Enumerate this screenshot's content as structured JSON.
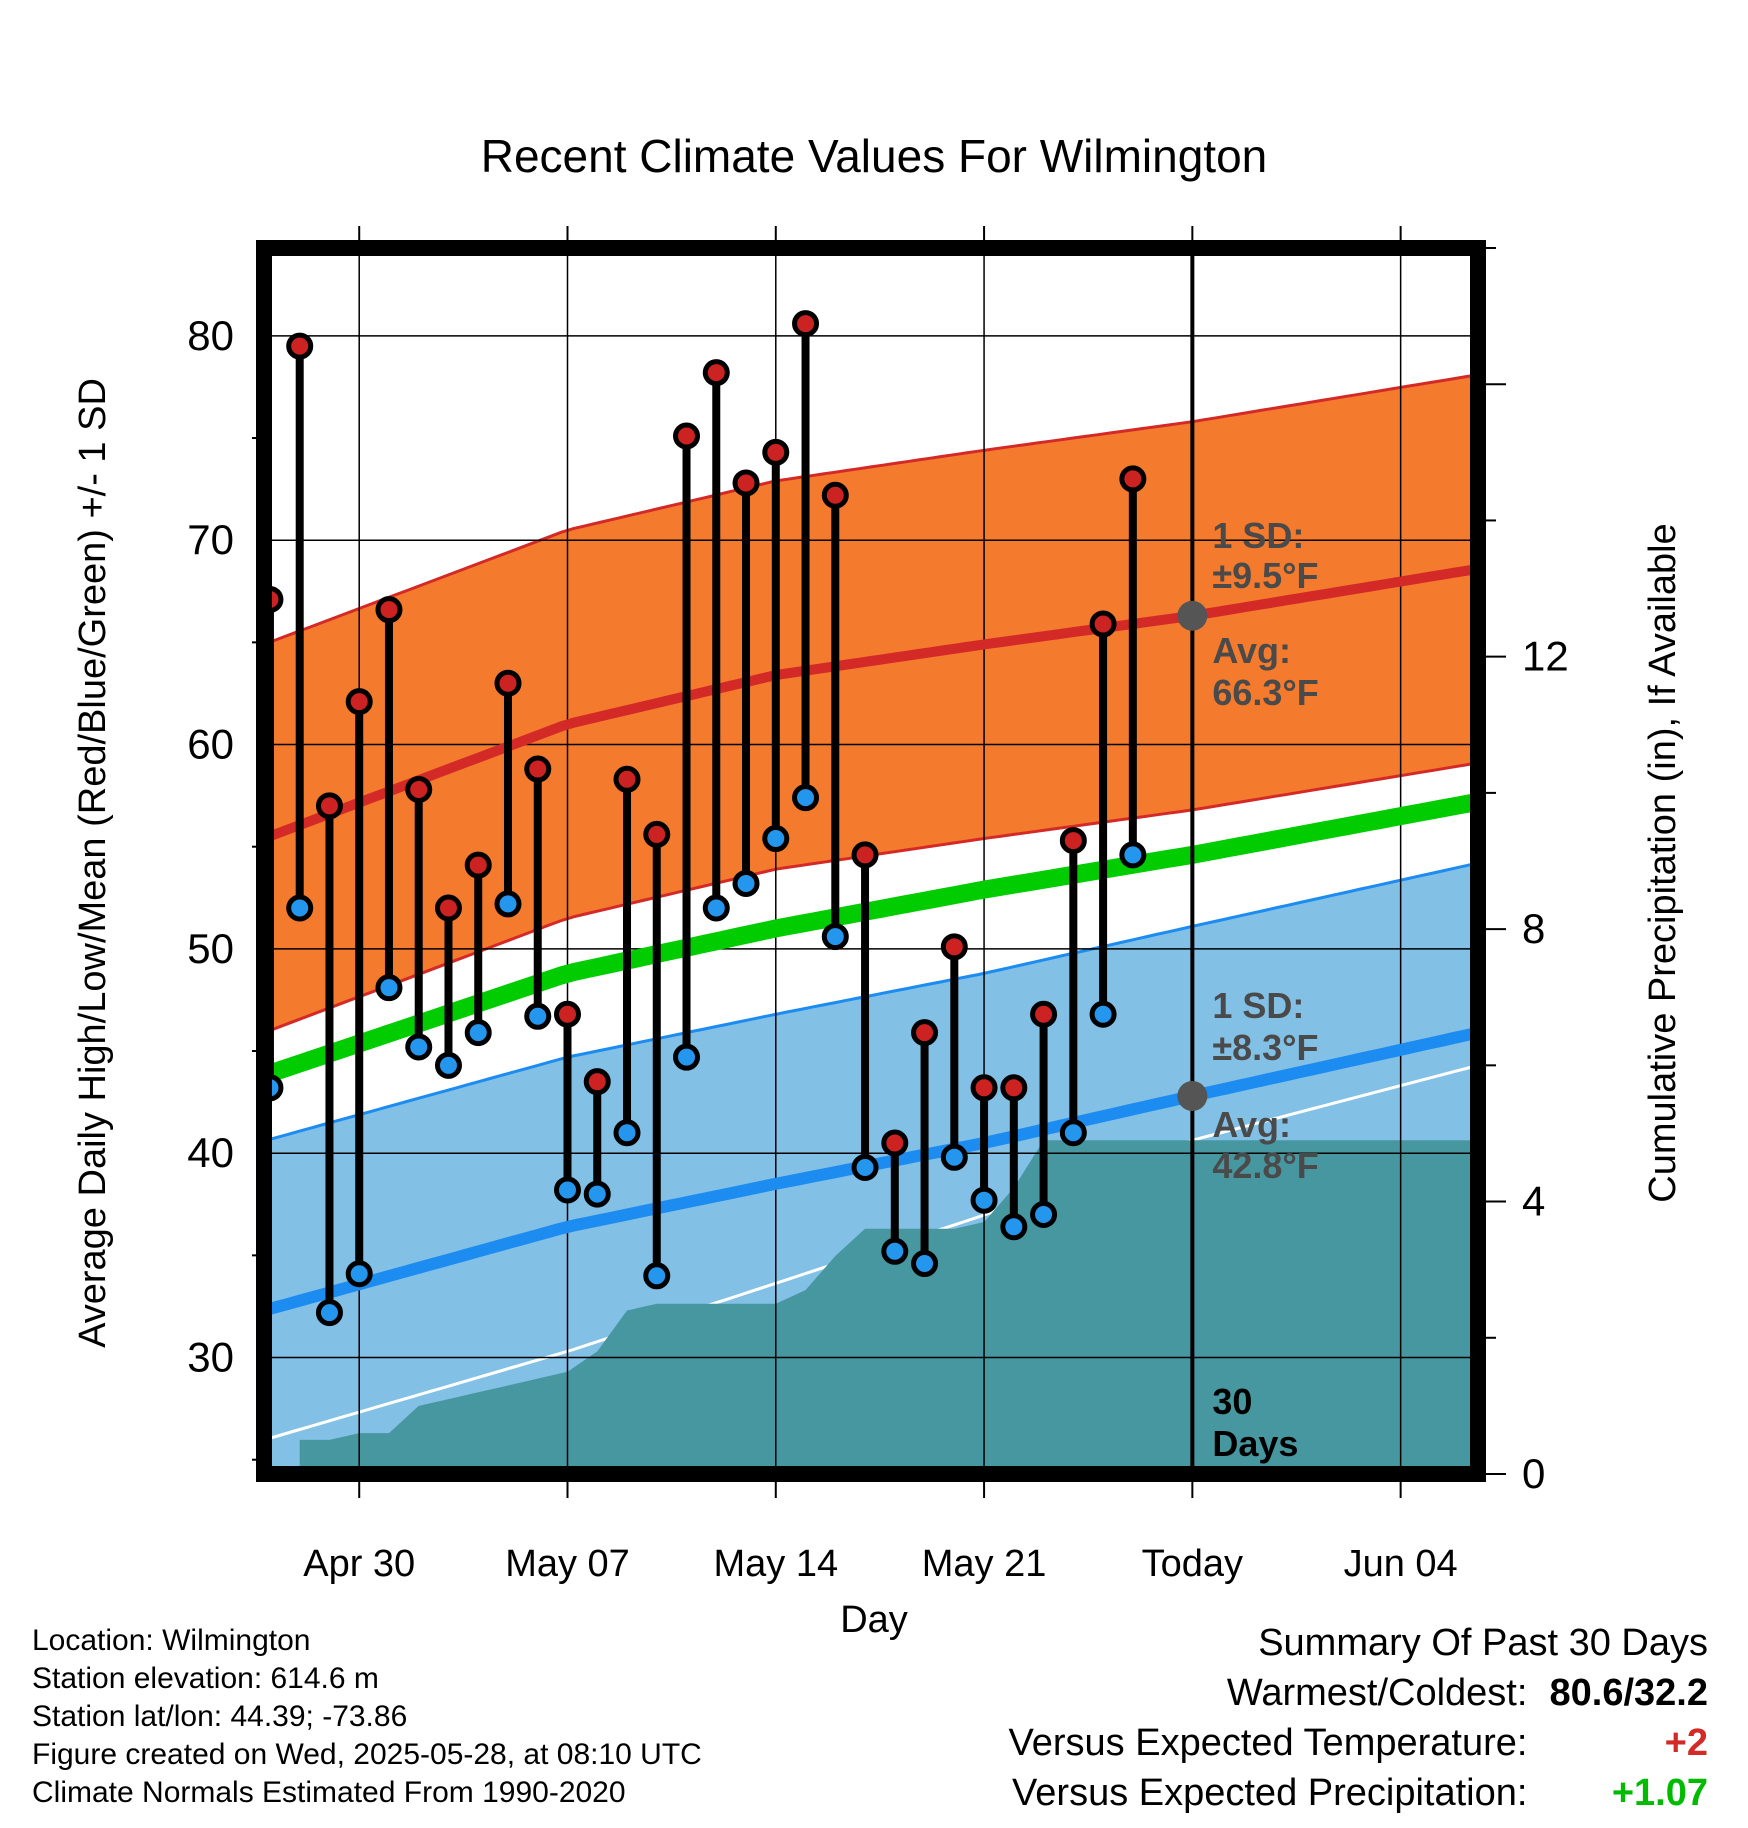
{
  "chart_data": {
    "type": "line",
    "title": "Recent Climate Values For Wilmington",
    "xlabel": "Day",
    "ylabel": "Average Daily High/Low/Mean (Red/Blue/Green) +/- 1 SD",
    "y2label": "Cumulative Precipitation (in), If Available",
    "ylim": [
      24.3,
      84.3
    ],
    "y2lim": [
      0,
      18.0
    ],
    "yticks": [
      "30",
      "40",
      "50",
      "60",
      "70",
      "80"
    ],
    "y2ticks": [
      "0",
      "4",
      "8",
      "12"
    ],
    "xticks": [
      {
        "day": 4,
        "label": "Apr 30"
      },
      {
        "day": 11,
        "label": "May 07"
      },
      {
        "day": 18,
        "label": "May 14"
      },
      {
        "day": 25,
        "label": "May 21"
      },
      {
        "day": 32,
        "label": "Today"
      },
      {
        "day": 39,
        "label": "Jun 04"
      }
    ],
    "xlim": [
      0.8,
      41.6
    ],
    "today_day": 32,
    "days": [
      1,
      2,
      3,
      4,
      5,
      6,
      7,
      8,
      9,
      10,
      11,
      12,
      13,
      14,
      15,
      16,
      17,
      18,
      19,
      20,
      21,
      22,
      23,
      24,
      25,
      26,
      27,
      28,
      29,
      30,
      31
    ],
    "highs": [
      67.1,
      79.5,
      57.0,
      62.1,
      66.6,
      57.8,
      52.0,
      54.1,
      63.0,
      58.8,
      46.8,
      43.5,
      58.3,
      55.6,
      75.1,
      78.2,
      72.8,
      74.3,
      80.6,
      72.2,
      54.6,
      40.5,
      45.9,
      50.1,
      43.2,
      43.2,
      46.8,
      55.3,
      65.9,
      73.0,
      null
    ],
    "lows": [
      43.2,
      52.0,
      32.2,
      34.1,
      48.1,
      45.2,
      44.3,
      45.9,
      52.2,
      46.7,
      38.2,
      38.0,
      41.0,
      34.0,
      44.7,
      52.0,
      53.2,
      55.4,
      57.4,
      50.6,
      39.3,
      35.2,
      34.6,
      39.8,
      37.7,
      36.4,
      37.0,
      41.0,
      46.8,
      54.6,
      null
    ],
    "normal_high": {
      "days": [
        0.8,
        11,
        18,
        25,
        32,
        41.6
      ],
      "values": [
        55.4,
        61.0,
        63.4,
        64.9,
        66.3,
        68.6
      ]
    },
    "normal_low": {
      "days": [
        0.8,
        11,
        18,
        25,
        32,
        41.6
      ],
      "values": [
        32.3,
        36.4,
        38.5,
        40.5,
        42.8,
        45.9
      ]
    },
    "normal_mean": {
      "days": [
        0.8,
        11,
        18,
        25,
        32,
        41.6
      ],
      "values": [
        43.8,
        48.8,
        51.0,
        52.9,
        54.6,
        57.2
      ]
    },
    "high_sd": 9.5,
    "low_sd": 8.3,
    "precip_normal": {
      "days": [
        0.8,
        11,
        18,
        25,
        32,
        41.6
      ],
      "values": [
        0.5,
        1.8,
        2.8,
        3.8,
        4.9,
        6.0
      ]
    },
    "precip_cumulative": {
      "days": [
        2,
        3,
        4,
        5,
        6,
        7,
        8,
        9,
        10,
        11,
        12,
        13,
        14,
        15,
        16,
        17,
        18,
        19,
        20,
        21,
        22,
        23,
        24,
        25,
        26,
        27,
        28,
        29,
        30,
        31,
        32,
        41.6
      ],
      "values": [
        0.5,
        0.5,
        0.6,
        0.6,
        1.0,
        1.1,
        1.2,
        1.3,
        1.4,
        1.5,
        1.8,
        2.4,
        2.5,
        2.5,
        2.5,
        2.5,
        2.5,
        2.7,
        3.2,
        3.6,
        3.6,
        3.6,
        3.6,
        3.7,
        4.2,
        4.9,
        4.9,
        4.9,
        4.9,
        4.9,
        4.9,
        4.9
      ]
    },
    "annotations": {
      "high_sd_label": "1 SD:",
      "high_sd_value": "±9.5°F",
      "high_avg_label": "Avg:",
      "high_avg_value": "66.3°F",
      "low_sd_label": "1 SD:",
      "low_sd_value": "±8.3°F",
      "low_avg_label": "Avg:",
      "low_avg_value": "42.8°F",
      "days_num": "30",
      "days_word": "Days"
    },
    "colors": {
      "high_band": "#f47a2e",
      "high_line": "#d42a27",
      "low_band": "#82c0e6",
      "low_line": "#1d8cf0",
      "mean_line": "#00cc00",
      "precip": "#4797a1",
      "high_dot": "#cc2222",
      "low_dot": "#2596ee",
      "annotation": "#4a4a4a",
      "positive": "#00bb00",
      "warm": "#d42a27"
    }
  },
  "info": {
    "location": "Location: Wilmington",
    "elevation": "Station elevation: 614.6 m",
    "latlon": "Station lat/lon: 44.39; -73.86",
    "created": "Figure created on Wed, 2025-05-28, at 08:10 UTC",
    "normals": "Climate Normals Estimated From 1990-2020"
  },
  "summary": {
    "heading": "Summary Of Past 30 Days",
    "warm_cold_label": "Warmest/Coldest:",
    "warm_cold_value": "80.6/32.2",
    "temp_label": "Versus Expected Temperature:",
    "temp_value": "+2",
    "precip_label": "Versus Expected Precipitation:",
    "precip_value": "+1.07"
  }
}
